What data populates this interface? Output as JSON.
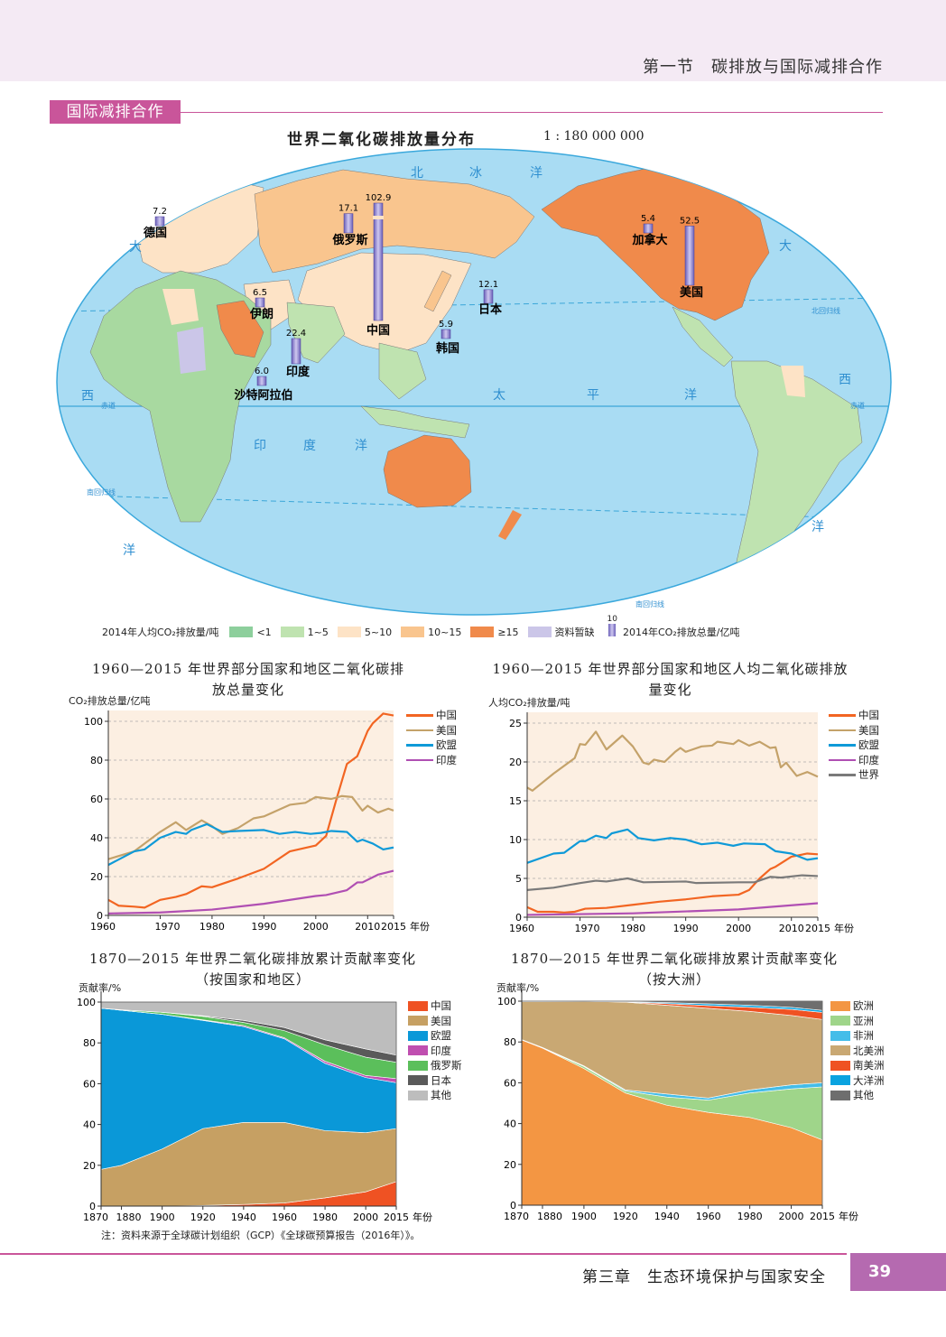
{
  "header": {
    "title": "第一节　碳排放与国际减排合作"
  },
  "section": {
    "tag": "国际减排合作"
  },
  "map": {
    "title": "世界二氧化碳排放量分布",
    "scale": "1 : 180 000 000",
    "oceans": [
      {
        "t": "北"
      },
      {
        "t": "冰"
      },
      {
        "t": "洋"
      },
      {
        "t": "大"
      },
      {
        "t": "西"
      },
      {
        "t": "洋"
      },
      {
        "t": "印"
      },
      {
        "t": "度"
      },
      {
        "t": "洋"
      },
      {
        "t": "太"
      },
      {
        "t": "平"
      },
      {
        "t": "洋"
      },
      {
        "t": "大"
      },
      {
        "t": "西"
      },
      {
        "t": "洋"
      }
    ],
    "lines": [
      "北回归线",
      "赤道",
      "南回归线",
      "赤道",
      "南回归线"
    ],
    "countries": [
      {
        "name": "德国",
        "value": 7.2
      },
      {
        "name": "俄罗斯",
        "value": 17.1
      },
      {
        "name": "中国",
        "value": 102.9
      },
      {
        "name": "伊朗",
        "value": 6.5
      },
      {
        "name": "印度",
        "value": 22.4
      },
      {
        "name": "沙特阿拉伯",
        "value": 6.0
      },
      {
        "name": "日本",
        "value": 12.1
      },
      {
        "name": "韩国",
        "value": 5.9
      },
      {
        "name": "加拿大",
        "value": 5.4
      },
      {
        "name": "美国",
        "value": 52.5
      }
    ],
    "legend": {
      "per_capita_label": "2014年人均CO₂排放量/吨",
      "classes": [
        {
          "label": "<1",
          "color": "#8dcf9c"
        },
        {
          "label": "1~5",
          "color": "#bfe3b0"
        },
        {
          "label": "5~10",
          "color": "#fde3c6"
        },
        {
          "label": "10~15",
          "color": "#f9c58e"
        },
        {
          "label": "≥15",
          "color": "#f08a4b"
        },
        {
          "label": "资料暂缺",
          "color": "#cbc6e8"
        }
      ],
      "bar_value": "10",
      "total_label": "2014年CO₂排放总量/亿吨"
    }
  },
  "chart_data": [
    {
      "type": "line",
      "title": "1960—2015 年世界部分国家和地区二氧化碳排放总量变化",
      "ylabel": "CO₂排放总量/亿吨",
      "xlabel": "年份",
      "xlim": [
        1960,
        2015
      ],
      "ylim": [
        0,
        100
      ],
      "xticks": [
        "1960",
        "1970",
        "1980",
        "1990",
        "2000",
        "2010",
        "2015"
      ],
      "yticks": [
        "0",
        "20",
        "40",
        "60",
        "80",
        "100"
      ],
      "grid": true,
      "legend": "right",
      "series": [
        {
          "name": "中国",
          "color": "#f26522",
          "x": [
            1960,
            1962,
            1965,
            1967,
            1970,
            1973,
            1975,
            1978,
            1980,
            1985,
            1990,
            1995,
            2000,
            2002,
            2004,
            2006,
            2008,
            2010,
            2011,
            2013,
            2015
          ],
          "y": [
            8,
            5,
            4.5,
            4,
            8,
            9.5,
            11,
            15,
            14.5,
            19,
            24,
            33,
            36,
            41,
            60,
            78,
            82,
            95,
            99,
            104,
            103
          ]
        },
        {
          "name": "美国",
          "color": "#c4a26a",
          "x": [
            1960,
            1965,
            1970,
            1973,
            1975,
            1978,
            1980,
            1982,
            1985,
            1988,
            1990,
            1995,
            1998,
            2000,
            2003,
            2005,
            2007,
            2009,
            2010,
            2012,
            2014,
            2015
          ],
          "y": [
            29,
            33,
            43,
            48,
            44,
            49,
            46,
            42,
            45,
            50,
            51,
            57,
            58,
            61,
            60,
            61.5,
            61,
            54,
            56.5,
            53,
            55,
            54
          ]
        },
        {
          "name": "欧盟",
          "color": "#0f9ad8",
          "x": [
            1960,
            1965,
            1967,
            1970,
            1973,
            1975,
            1976,
            1979,
            1982,
            1985,
            1990,
            1993,
            1996,
            1999,
            2001,
            2003,
            2006,
            2008,
            2009,
            2011,
            2013,
            2015
          ],
          "y": [
            26,
            33,
            34,
            40,
            43,
            42,
            44,
            47,
            43,
            43.5,
            44,
            42,
            43,
            42,
            42.5,
            43.5,
            43,
            38,
            39,
            37,
            34,
            35
          ]
        },
        {
          "name": "印度",
          "color": "#b04fb3",
          "x": [
            1960,
            1970,
            1980,
            1990,
            2000,
            2002,
            2006,
            2008,
            2009,
            2012,
            2015
          ],
          "y": [
            1,
            1.5,
            3,
            6,
            10,
            10.5,
            13,
            17,
            17,
            21,
            23
          ]
        }
      ]
    },
    {
      "type": "line",
      "title": "1960—2015 年世界部分国家和地区人均二氧化碳排放量变化",
      "ylabel": "人均CO₂排放量/吨",
      "xlabel": "年份",
      "xlim": [
        1960,
        2015
      ],
      "ylim": [
        0,
        25
      ],
      "xticks": [
        "1960",
        "1970",
        "1980",
        "1990",
        "2000",
        "2010",
        "2015"
      ],
      "yticks": [
        "0",
        "5",
        "10",
        "15",
        "20",
        "25"
      ],
      "grid": true,
      "legend": "right",
      "series": [
        {
          "name": "中国",
          "color": "#f26522",
          "x": [
            1960,
            1962,
            1965,
            1967,
            1969,
            1971,
            1975,
            1980,
            1985,
            1990,
            1995,
            2000,
            2002,
            2004,
            2006,
            2007,
            2010,
            2013,
            2015
          ],
          "y": [
            1.3,
            0.7,
            0.7,
            0.6,
            0.7,
            1.1,
            1.2,
            1.6,
            2,
            2.3,
            2.7,
            2.9,
            3.5,
            5,
            6.2,
            6.5,
            7.8,
            8.2,
            8.1
          ]
        },
        {
          "name": "美国",
          "color": "#c4a26a",
          "x": [
            1960,
            1961,
            1965,
            1969,
            1970,
            1971,
            1973,
            1975,
            1978,
            1980,
            1982,
            1983,
            1984,
            1986,
            1988,
            1989,
            1990,
            1993,
            1995,
            1996,
            1999,
            2000,
            2002,
            2004,
            2006,
            2007,
            2008,
            2009,
            2011,
            2013,
            2015
          ],
          "y": [
            16.7,
            16.3,
            18.5,
            20.5,
            22.3,
            22.2,
            23.9,
            21.6,
            23.4,
            22,
            19.9,
            19.7,
            20.3,
            20,
            21.3,
            21.8,
            21.3,
            22,
            22.1,
            22.6,
            22.3,
            22.8,
            22.1,
            22.6,
            21.8,
            21.9,
            19.3,
            19.9,
            18.2,
            18.7,
            18.1
          ]
        },
        {
          "name": "欧盟",
          "color": "#0f9ad8",
          "x": [
            1960,
            1965,
            1967,
            1970,
            1971,
            1973,
            1975,
            1976,
            1979,
            1981,
            1984,
            1987,
            1990,
            1993,
            1996,
            1999,
            2001,
            2005,
            2007,
            2008,
            2010,
            2013,
            2015
          ],
          "y": [
            7,
            8.2,
            8.3,
            9.8,
            9.8,
            10.5,
            10.2,
            10.8,
            11.3,
            10.2,
            9.9,
            10.2,
            10,
            9.4,
            9.6,
            9.2,
            9.5,
            9.4,
            8.5,
            8.4,
            8.2,
            7.4,
            7.6
          ]
        },
        {
          "name": "印度",
          "color": "#b04fb3",
          "x": [
            1960,
            1980,
            2000,
            2015
          ],
          "y": [
            0.3,
            0.5,
            1,
            1.8
          ]
        },
        {
          "name": "世界",
          "color": "#7a7a7a",
          "x": [
            1960,
            1965,
            1970,
            1973,
            1975,
            1979,
            1982,
            1990,
            1992,
            2000,
            2003,
            2006,
            2008,
            2012,
            2015
          ],
          "y": [
            3.5,
            3.8,
            4.4,
            4.7,
            4.6,
            5,
            4.5,
            4.6,
            4.4,
            4.5,
            4.5,
            5.2,
            5.1,
            5.4,
            5.3
          ]
        }
      ]
    },
    {
      "type": "area",
      "stacked": true,
      "title": "1870—2015 年世界二氧化碳排放累计贡献率变化（按国家和地区）",
      "ylabel": "贡献率/%",
      "xlabel": "年份",
      "xlim": [
        1870,
        2015
      ],
      "ylim": [
        0,
        100
      ],
      "xticks": [
        "1870",
        "1880",
        "1900",
        "1920",
        "1940",
        "1960",
        "1980",
        "2000",
        "2015"
      ],
      "yticks": [
        "0",
        "20",
        "40",
        "60",
        "80",
        "100"
      ],
      "legend": "right",
      "x": [
        1870,
        1880,
        1900,
        1920,
        1940,
        1960,
        1980,
        2000,
        2015
      ],
      "series": [
        {
          "name": "中国",
          "color": "#ef5223",
          "values": [
            0,
            0,
            0,
            0.3,
            0.8,
            1.5,
            4,
            7,
            12
          ]
        },
        {
          "name": "美国",
          "color": "#c6a063",
          "values": [
            18,
            20,
            28,
            37.7,
            40.2,
            39.5,
            33,
            29,
            26
          ]
        },
        {
          "name": "欧盟",
          "color": "#0a98d8",
          "values": [
            79,
            76,
            66,
            53,
            47,
            41,
            33,
            27,
            22.5
          ]
        },
        {
          "name": "印度",
          "color": "#c04fb0",
          "values": [
            0,
            0,
            0,
            0.3,
            0.5,
            0.5,
            1,
            1,
            2
          ]
        },
        {
          "name": "俄罗斯",
          "color": "#5bbf5b",
          "values": [
            0,
            0.2,
            1,
            1.7,
            1.5,
            3.5,
            8,
            9,
            8
          ]
        },
        {
          "name": "日本",
          "color": "#5a5a5a",
          "values": [
            0,
            0,
            0,
            0.3,
            1,
            1.5,
            2.5,
            4,
            3.5
          ]
        },
        {
          "name": "其他",
          "color": "#bdbdbd",
          "values": [
            3,
            3.8,
            5,
            6.7,
            9,
            12.5,
            18.5,
            23,
            26
          ]
        }
      ]
    },
    {
      "type": "area",
      "stacked": true,
      "title": "1870—2015 年世界二氧化碳排放累计贡献率变化（按大洲）",
      "ylabel": "贡献率/%",
      "xlabel": "年份",
      "xlim": [
        1870,
        2015
      ],
      "ylim": [
        0,
        100
      ],
      "xticks": [
        "1870",
        "1880",
        "1900",
        "1920",
        "1940",
        "1960",
        "1980",
        "2000",
        "2015"
      ],
      "yticks": [
        "0",
        "20",
        "40",
        "60",
        "80",
        "100"
      ],
      "legend": "right",
      "x": [
        1870,
        1880,
        1900,
        1920,
        1940,
        1960,
        1980,
        2000,
        2015
      ],
      "series": [
        {
          "name": "欧洲",
          "color": "#f39643",
          "values": [
            81,
            77,
            67,
            55,
            49,
            45.5,
            43,
            38,
            32
          ]
        },
        {
          "name": "亚洲",
          "color": "#9fd58a",
          "values": [
            0,
            0,
            1,
            1,
            4,
            6,
            12,
            19,
            26
          ]
        },
        {
          "name": "非洲",
          "color": "#44bde9",
          "values": [
            0.2,
            0.3,
            0.3,
            0.5,
            1.5,
            1,
            1.5,
            2,
            2
          ]
        },
        {
          "name": "北美洲",
          "color": "#c9a873",
          "values": [
            18.6,
            22.5,
            31.6,
            43,
            43.5,
            44,
            38.5,
            34,
            31
          ]
        },
        {
          "name": "南美洲",
          "color": "#ef5223",
          "values": [
            0,
            0,
            0,
            0.1,
            0.8,
            1.3,
            2,
            3,
            3.5
          ]
        },
        {
          "name": "大洋洲",
          "color": "#0aa3e0",
          "values": [
            0.1,
            0.1,
            0,
            0.2,
            0.5,
            0.9,
            1,
            1,
            1
          ]
        },
        {
          "name": "其他",
          "color": "#6e6e6e",
          "values": [
            0.1,
            0.1,
            0.1,
            0.2,
            0.7,
            1.3,
            2,
            3,
            4.5
          ]
        }
      ]
    }
  ],
  "note": "注：资料来源于全球碳计划组织（GCP）《全球碳预算报告（2016年）》。",
  "footer": {
    "chapter": "第三章　生态环境保护与国家安全",
    "page": "39"
  }
}
